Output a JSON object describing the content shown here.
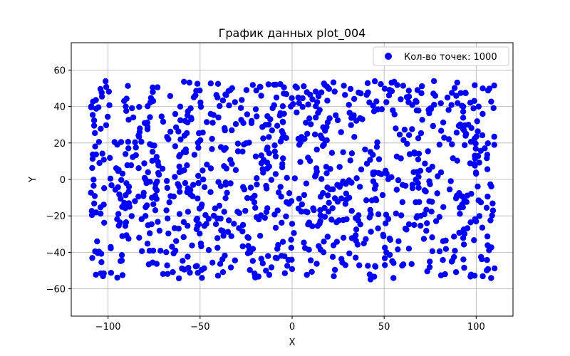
{
  "chart_data": {
    "type": "scatter",
    "title": "График данных plot_004",
    "xlabel": "X",
    "ylabel": "Y",
    "xlim": [
      -120,
      120
    ],
    "ylim": [
      -75,
      75
    ],
    "xticks": [
      -100,
      -50,
      0,
      50,
      100
    ],
    "yticks": [
      -60,
      -40,
      -20,
      0,
      20,
      40,
      60
    ],
    "grid": true,
    "legend_position": "top-right",
    "series": [
      {
        "name": "Кол-во точек: 1000",
        "color": "#0000ff",
        "marker": "circle",
        "x_range": [
          -110,
          110
        ],
        "y_range": [
          -55,
          54
        ],
        "count": 1000
      }
    ]
  }
}
